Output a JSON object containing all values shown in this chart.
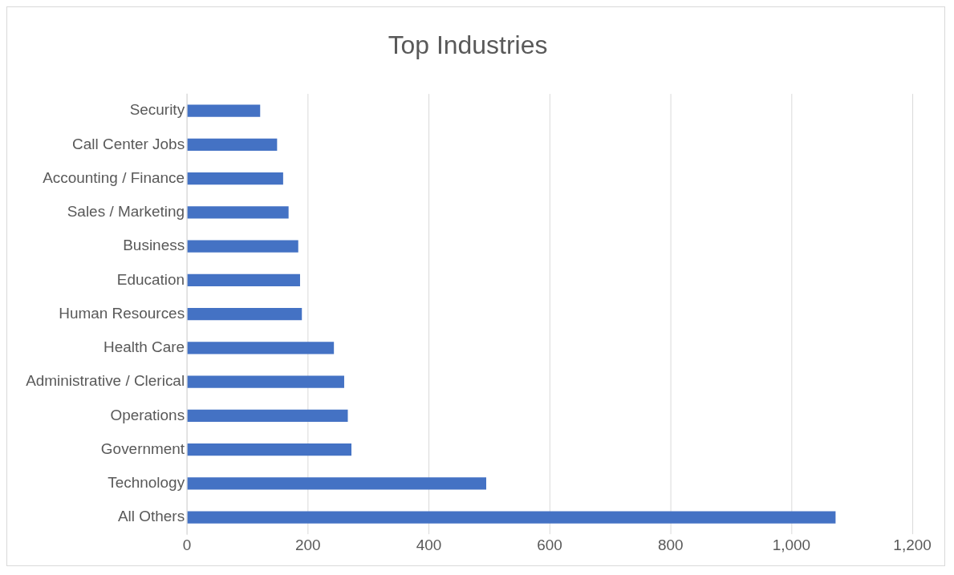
{
  "chart_data": {
    "type": "bar",
    "orientation": "horizontal",
    "title": "Top Industries",
    "categories": [
      "Security",
      "Call Center Jobs",
      "Accounting / Finance",
      "Sales / Marketing",
      "Business",
      "Education",
      "Human Resources",
      "Health Care",
      "Administrative / Clerical",
      "Operations",
      "Government",
      "Technology",
      "All Others"
    ],
    "values": [
      121,
      149,
      159,
      168,
      184,
      187,
      190,
      243,
      260,
      266,
      272,
      495,
      1073
    ],
    "color": "#4472c4",
    "xlim": [
      0,
      1200
    ],
    "xticks": [
      0,
      200,
      400,
      600,
      800,
      {
        "value": 1000,
        "label": "1,000"
      },
      {
        "value": 1200,
        "label": "1,200"
      }
    ],
    "grid": "x",
    "legend": false
  }
}
